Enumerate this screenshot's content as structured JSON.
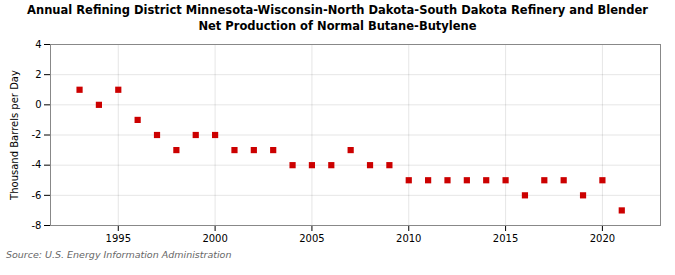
{
  "chart_data": {
    "type": "scatter",
    "title": "Annual Refining District Minnesota-Wisconsin-North Dakota-South Dakota Refinery and Blender",
    "subtitle": "Net Production of Normal Butane-Butylene",
    "y_label": "Thousand Barrels per Day",
    "source": "Source: U.S. Energy Information Administration",
    "x": [
      1993,
      1994,
      1995,
      1996,
      1997,
      1998,
      1999,
      2000,
      2001,
      2002,
      2003,
      2004,
      2005,
      2006,
      2007,
      2008,
      2009,
      2010,
      2011,
      2012,
      2013,
      2014,
      2015,
      2016,
      2017,
      2018,
      2019,
      2020,
      2021
    ],
    "values": [
      1.0,
      0.0,
      1.0,
      -1.0,
      -2.0,
      -3.0,
      -2.0,
      -2.0,
      -3.0,
      -3.0,
      -3.0,
      -4.0,
      -4.0,
      -4.0,
      -3.0,
      -4.0,
      -4.0,
      -5.0,
      -5.0,
      -5.0,
      -5.0,
      -5.0,
      -5.0,
      -6.0,
      -5.0,
      -5.0,
      -6.0,
      -5.0,
      -7.0
    ],
    "color": "#cc0000",
    "marker": "square",
    "xlim": [
      1991.5,
      2023
    ],
    "xticks": [
      1995,
      2000,
      2005,
      2010,
      2015,
      2020
    ],
    "ylim": [
      -8,
      4
    ],
    "yticks": [
      -8,
      -6,
      -4,
      -2,
      0,
      2,
      4
    ],
    "grid": true
  }
}
